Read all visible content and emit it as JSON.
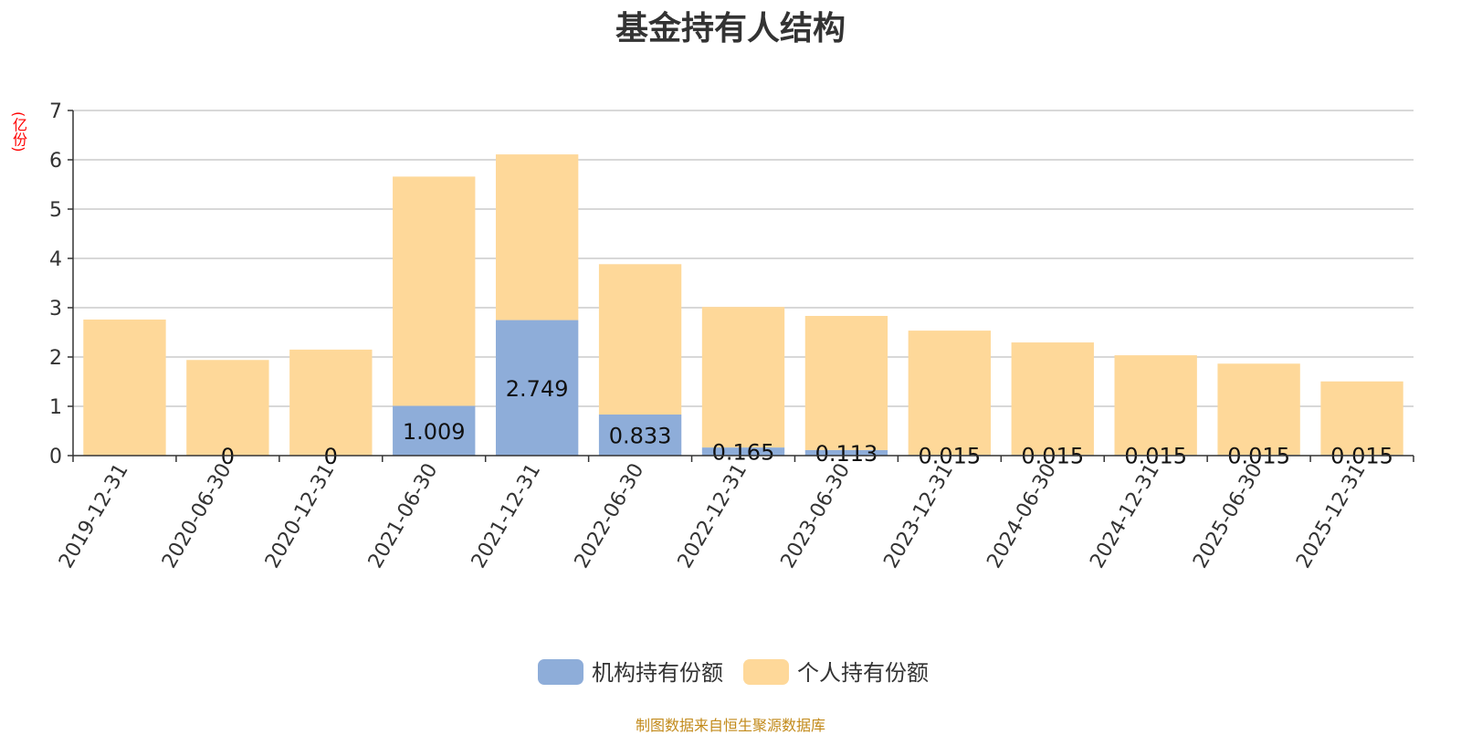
{
  "chart_data": {
    "type": "bar",
    "stacked": true,
    "title": "基金持有人结构",
    "ylabel": "(亿份)",
    "ylim": [
      0,
      7
    ],
    "yticks": [
      0,
      1,
      2,
      3,
      4,
      5,
      6,
      7
    ],
    "grid": true,
    "legend_position": "bottom",
    "categories": [
      "2019-12-31",
      "2020-06-30",
      "2020-12-31",
      "2021-06-30",
      "2021-12-31",
      "2022-06-30",
      "2022-12-31",
      "2023-06-30",
      "2023-12-31",
      "2024-06-30",
      "2024-12-31",
      "2025-06-30",
      "2025-12-31"
    ],
    "series": [
      {
        "name": "机构持有份额",
        "color": "#8eadd9",
        "values": [
          0,
          0,
          0,
          1.009,
          2.749,
          0.833,
          0.165,
          0.113,
          0.015,
          0.015,
          0.015,
          0.015,
          0.015
        ],
        "labels": [
          "",
          "0",
          "0",
          "1.009",
          "2.749",
          "0.833",
          "0.165",
          "0.113",
          "0.015",
          "0.015",
          "0.015",
          "0.015",
          "0.015"
        ]
      },
      {
        "name": "个人持有份额",
        "color": "#fed899",
        "values": [
          2.76,
          1.94,
          2.15,
          4.65,
          3.36,
          3.05,
          2.85,
          2.72,
          2.52,
          2.28,
          2.02,
          1.85,
          1.49
        ]
      }
    ]
  },
  "footer": {
    "source": "制图数据来自恒生聚源数据库"
  }
}
